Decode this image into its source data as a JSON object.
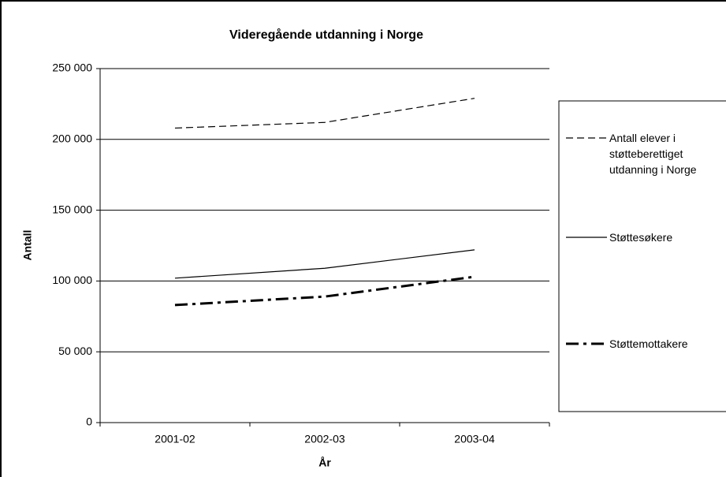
{
  "chart_data": {
    "type": "line",
    "title": "Videregående utdanning i Norge",
    "x_label": "År",
    "y_label": "Antall",
    "categories": [
      "2001-02",
      "2002-03",
      "2003-04"
    ],
    "series": [
      {
        "name": "Antall elever i støtteberettiget utdanning i Norge",
        "color": "#000000",
        "line_style": "dashed",
        "values": [
          208000,
          212000,
          229000
        ]
      },
      {
        "name": "Støttesøkere",
        "color": "#000000",
        "line_style": "solid",
        "values": [
          102000,
          109000,
          122000
        ]
      },
      {
        "name": "Støttemottakere",
        "color": "#000000",
        "line_style": "dashdot",
        "values": [
          83000,
          89000,
          103000
        ]
      }
    ],
    "ylim": [
      0,
      250000
    ],
    "yticks": [
      {
        "value": 0,
        "label": "0"
      },
      {
        "value": 50000,
        "label": "50 000"
      },
      {
        "value": 100000,
        "label": "100 000"
      },
      {
        "value": 150000,
        "label": "150 000"
      },
      {
        "value": 200000,
        "label": "200 000"
      },
      {
        "value": 250000,
        "label": "250 000"
      }
    ],
    "grid": true,
    "legend": "right"
  }
}
